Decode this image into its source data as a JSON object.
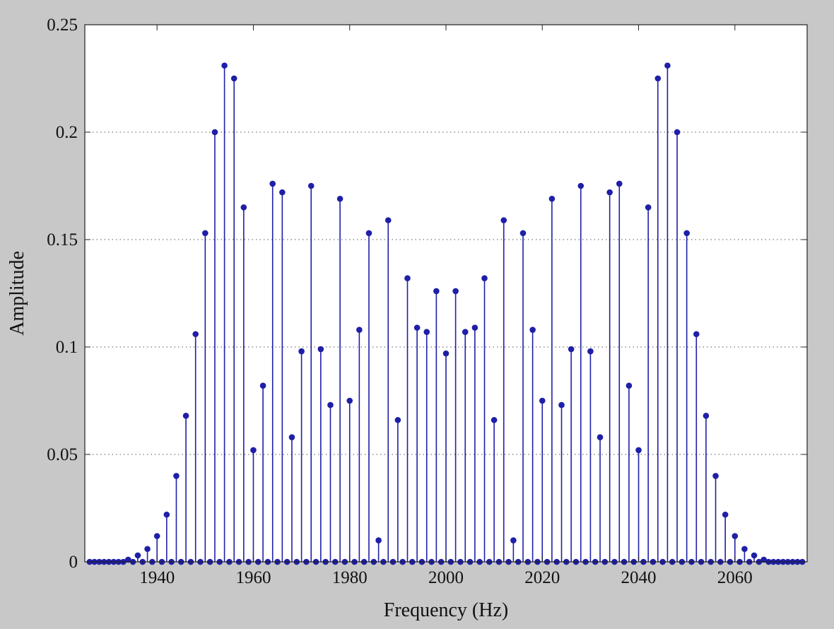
{
  "chart_data": {
    "type": "stem",
    "xlabel": "Frequency (Hz)",
    "ylabel": "Amplitude",
    "xlim": [
      1925,
      2075
    ],
    "ylim": [
      0,
      0.25
    ],
    "xticks": [
      1940,
      1960,
      1980,
      2000,
      2020,
      2040,
      2060
    ],
    "yticks": [
      0,
      0.05,
      0.1,
      0.15,
      0.2,
      0.25
    ],
    "ytick_labels": [
      "0",
      "0.05",
      "0.1",
      "0.15",
      "0.2",
      "0.25"
    ],
    "grid": "horizontal-dotted",
    "series_color": "#1f1fa8",
    "baseline_points_x": [
      1926,
      1927,
      1928,
      1929,
      1930,
      1931,
      1932,
      1933,
      1935,
      1937,
      1939,
      1941,
      1943,
      1945,
      1947,
      1949,
      1951,
      1953,
      1955,
      1957,
      1959,
      1961,
      1963,
      1965,
      1967,
      1969,
      1971,
      1973,
      1975,
      1977,
      1979,
      1981,
      1983,
      1985,
      1987,
      1989,
      1991,
      1993,
      1995,
      1997,
      1999,
      2001,
      2003,
      2005,
      2007,
      2009,
      2011,
      2013,
      2015,
      2017,
      2019,
      2021,
      2023,
      2025,
      2027,
      2029,
      2031,
      2033,
      2035,
      2037,
      2039,
      2041,
      2043,
      2045,
      2047,
      2049,
      2051,
      2053,
      2055,
      2057,
      2059,
      2061,
      2063,
      2065,
      2067,
      2068,
      2069,
      2070,
      2071,
      2072,
      2073,
      2074
    ],
    "x": [
      1934,
      1936,
      1938,
      1940,
      1942,
      1944,
      1946,
      1948,
      1950,
      1952,
      1954,
      1956,
      1958,
      1960,
      1962,
      1964,
      1966,
      1968,
      1970,
      1972,
      1974,
      1976,
      1978,
      1980,
      1982,
      1984,
      1986,
      1988,
      1990,
      1992,
      1994,
      1996,
      1998,
      2000,
      2002,
      2004,
      2006,
      2008,
      2010,
      2012,
      2014,
      2016,
      2018,
      2020,
      2022,
      2024,
      2026,
      2028,
      2030,
      2032,
      2034,
      2036,
      2038,
      2040,
      2042,
      2044,
      2046,
      2048,
      2050,
      2052,
      2054,
      2056,
      2058,
      2060,
      2062,
      2064,
      2066
    ],
    "y": [
      0.001,
      0.003,
      0.006,
      0.012,
      0.022,
      0.04,
      0.068,
      0.106,
      0.153,
      0.2,
      0.231,
      0.225,
      0.165,
      0.052,
      0.082,
      0.176,
      0.172,
      0.058,
      0.098,
      0.175,
      0.099,
      0.073,
      0.169,
      0.075,
      0.108,
      0.153,
      0.01,
      0.159,
      0.066,
      0.132,
      0.109,
      0.107,
      0.126,
      0.097,
      0.126,
      0.107,
      0.109,
      0.132,
      0.066,
      0.159,
      0.01,
      0.153,
      0.108,
      0.075,
      0.169,
      0.073,
      0.099,
      0.175,
      0.098,
      0.058,
      0.172,
      0.176,
      0.082,
      0.052,
      0.165,
      0.225,
      0.231,
      0.2,
      0.153,
      0.106,
      0.068,
      0.04,
      0.022,
      0.012,
      0.006,
      0.003,
      0.001
    ]
  }
}
